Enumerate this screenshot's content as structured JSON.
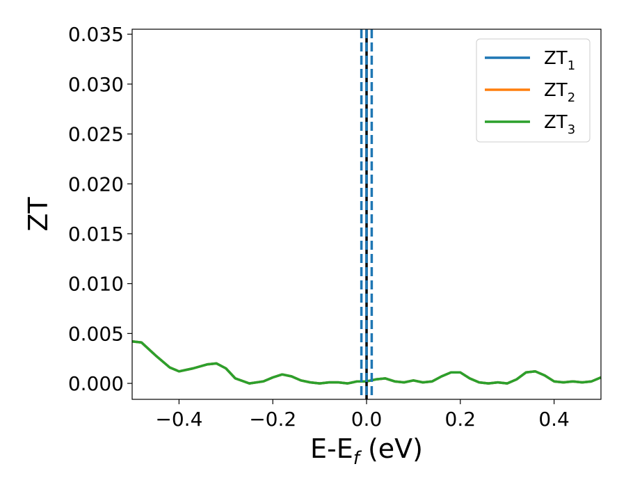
{
  "chart_data": {
    "type": "line",
    "xlabel": {
      "main": "E-E",
      "sub": "f",
      "unit": " (eV)"
    },
    "ylabel": "ZT",
    "xlim": [
      -0.5,
      0.5
    ],
    "ylim": [
      -0.0016,
      0.0355
    ],
    "xticks": [
      -0.4,
      -0.2,
      0.0,
      0.2,
      0.4
    ],
    "xtick_labels": [
      "−0.4",
      "−0.2",
      "0.0",
      "0.2",
      "0.4"
    ],
    "yticks": [
      0.0,
      0.005,
      0.01,
      0.015,
      0.02,
      0.025,
      0.03,
      0.035
    ],
    "ytick_labels": [
      "0.000",
      "0.005",
      "0.010",
      "0.015",
      "0.020",
      "0.025",
      "0.030",
      "0.035"
    ],
    "grid": false,
    "legend_position": "top-right",
    "series": [
      {
        "name": "ZT",
        "sub": "1",
        "color": "#1f77b4",
        "x": [
          -0.5,
          -0.48,
          -0.45,
          -0.42,
          -0.4,
          -0.37,
          -0.34,
          -0.32,
          -0.3,
          -0.28,
          -0.25,
          -0.22,
          -0.2,
          -0.18,
          -0.16,
          -0.14,
          -0.12,
          -0.1,
          -0.08,
          -0.06,
          -0.04,
          -0.02,
          0.0,
          0.02,
          0.04,
          0.06,
          0.08,
          0.1,
          0.12,
          0.14,
          0.16,
          0.18,
          0.2,
          0.22,
          0.24,
          0.26,
          0.28,
          0.3,
          0.32,
          0.34,
          0.36,
          0.38,
          0.4,
          0.42,
          0.44,
          0.46,
          0.48,
          0.5
        ],
        "y": [
          0.0042,
          0.0041,
          0.0028,
          0.0016,
          0.0012,
          0.0015,
          0.0019,
          0.002,
          0.0015,
          0.0005,
          0.0,
          0.0002,
          0.0006,
          0.0009,
          0.0007,
          0.0003,
          0.0001,
          0.0,
          0.0001,
          0.0001,
          0.0,
          0.0002,
          0.0002,
          0.0004,
          0.0005,
          0.0002,
          0.0001,
          0.0003,
          0.0001,
          0.0002,
          0.0007,
          0.0011,
          0.0011,
          0.0005,
          0.0001,
          0.0,
          0.0001,
          0.0,
          0.0004,
          0.0011,
          0.0012,
          0.0008,
          0.0002,
          0.0001,
          0.0002,
          0.0001,
          0.0002,
          0.0006
        ]
      },
      {
        "name": "ZT",
        "sub": "2",
        "color": "#ff7f0e",
        "x": [
          -0.5,
          -0.48,
          -0.45,
          -0.42,
          -0.4,
          -0.37,
          -0.34,
          -0.32,
          -0.3,
          -0.28,
          -0.25,
          -0.22,
          -0.2,
          -0.18,
          -0.16,
          -0.14,
          -0.12,
          -0.1,
          -0.08,
          -0.06,
          -0.04,
          -0.02,
          0.0,
          0.02,
          0.04,
          0.06,
          0.08,
          0.1,
          0.12,
          0.14,
          0.16,
          0.18,
          0.2,
          0.22,
          0.24,
          0.26,
          0.28,
          0.3,
          0.32,
          0.34,
          0.36,
          0.38,
          0.4,
          0.42,
          0.44,
          0.46,
          0.48,
          0.5
        ],
        "y": [
          0.0042,
          0.0041,
          0.0028,
          0.0016,
          0.0012,
          0.0015,
          0.0019,
          0.002,
          0.0015,
          0.0005,
          0.0,
          0.0002,
          0.0006,
          0.0009,
          0.0007,
          0.0003,
          0.0001,
          0.0,
          0.0001,
          0.0001,
          0.0,
          0.0002,
          0.0002,
          0.0004,
          0.0005,
          0.0002,
          0.0001,
          0.0003,
          0.0001,
          0.0002,
          0.0007,
          0.0011,
          0.0011,
          0.0005,
          0.0001,
          0.0,
          0.0001,
          0.0,
          0.0004,
          0.0011,
          0.0012,
          0.0008,
          0.0002,
          0.0001,
          0.0002,
          0.0001,
          0.0002,
          0.0006
        ]
      },
      {
        "name": "ZT",
        "sub": "3",
        "color": "#2ca02c",
        "x": [
          -0.5,
          -0.48,
          -0.45,
          -0.42,
          -0.4,
          -0.37,
          -0.34,
          -0.32,
          -0.3,
          -0.28,
          -0.25,
          -0.22,
          -0.2,
          -0.18,
          -0.16,
          -0.14,
          -0.12,
          -0.1,
          -0.08,
          -0.06,
          -0.04,
          -0.02,
          0.0,
          0.02,
          0.04,
          0.06,
          0.08,
          0.1,
          0.12,
          0.14,
          0.16,
          0.18,
          0.2,
          0.22,
          0.24,
          0.26,
          0.28,
          0.3,
          0.32,
          0.34,
          0.36,
          0.38,
          0.4,
          0.42,
          0.44,
          0.46,
          0.48,
          0.5
        ],
        "y": [
          0.0042,
          0.0041,
          0.0028,
          0.0016,
          0.0012,
          0.0015,
          0.0019,
          0.002,
          0.0015,
          0.0005,
          0.0,
          0.0002,
          0.0006,
          0.0009,
          0.0007,
          0.0003,
          0.0001,
          0.0,
          0.0001,
          0.0001,
          0.0,
          0.0002,
          0.0002,
          0.0004,
          0.0005,
          0.0002,
          0.0001,
          0.0003,
          0.0001,
          0.0002,
          0.0007,
          0.0011,
          0.0011,
          0.0005,
          0.0001,
          0.0,
          0.0001,
          0.0,
          0.0004,
          0.0011,
          0.0012,
          0.0008,
          0.0002,
          0.0001,
          0.0002,
          0.0001,
          0.0002,
          0.0006
        ]
      }
    ],
    "vlines": [
      {
        "x": 0.0,
        "color": "#000000",
        "style": "solid"
      },
      {
        "x": -0.011,
        "color": "#1f77b4",
        "style": "dashed"
      },
      {
        "x": 0.011,
        "color": "#1f77b4",
        "style": "dashed"
      },
      {
        "x": 0.0,
        "color": "#1f77b4",
        "style": "dashed"
      }
    ]
  }
}
